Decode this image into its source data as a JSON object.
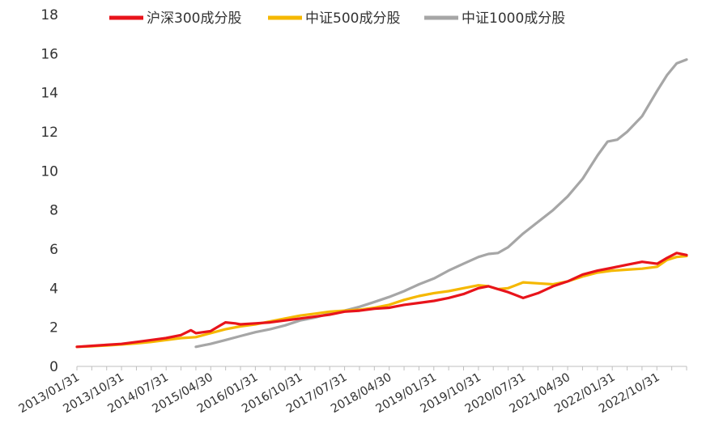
{
  "chart_data": {
    "type": "line",
    "title": "",
    "xlabel": "",
    "ylabel": "",
    "ylim": [
      0,
      18
    ],
    "yticks": [
      "0",
      "2",
      "4",
      "6",
      "8",
      "10",
      "12",
      "14",
      "16",
      "18"
    ],
    "xticks": [
      "2013/01/31",
      "2013/10/31",
      "2014/07/31",
      "2015/04/30",
      "2016/01/31",
      "2016/10/31",
      "2017/07/31",
      "2018/04/30",
      "2019/01/31",
      "2019/10/31",
      "2020/07/31",
      "2021/04/30",
      "2022/01/31",
      "2022/10/31"
    ],
    "grid": false,
    "legend_position": "top",
    "series": [
      {
        "name": "沪深300成分股",
        "color": "#e8141b",
        "x": [
          "2013/01/31",
          "2013/04/30",
          "2013/07/31",
          "2013/10/31",
          "2014/01/31",
          "2014/04/30",
          "2014/07/31",
          "2014/10/31",
          "2014/12/31",
          "2015/01/31",
          "2015/04/30",
          "2015/06/30",
          "2015/07/31",
          "2015/09/30",
          "2015/10/31",
          "2016/01/31",
          "2016/04/30",
          "2016/07/31",
          "2016/10/31",
          "2017/01/31",
          "2017/04/30",
          "2017/07/31",
          "2017/10/31",
          "2018/01/31",
          "2018/04/30",
          "2018/07/31",
          "2018/10/31",
          "2019/01/31",
          "2019/04/30",
          "2019/07/31",
          "2019/10/31",
          "2019/12/31",
          "2020/02/28",
          "2020/04/30",
          "2020/07/31",
          "2020/10/31",
          "2021/01/31",
          "2021/04/30",
          "2021/07/31",
          "2021/10/31",
          "2022/01/31",
          "2022/04/30",
          "2022/07/31",
          "2022/10/31",
          "2022/12/31",
          "2023/02/28",
          "2023/04/30"
        ],
        "y": [
          1.0,
          1.05,
          1.1,
          1.15,
          1.25,
          1.35,
          1.45,
          1.6,
          1.85,
          1.7,
          1.8,
          2.1,
          2.25,
          2.2,
          2.15,
          2.2,
          2.25,
          2.35,
          2.45,
          2.55,
          2.65,
          2.8,
          2.85,
          2.95,
          3.0,
          3.15,
          3.25,
          3.35,
          3.5,
          3.7,
          4.0,
          4.1,
          3.95,
          3.8,
          3.5,
          3.75,
          4.1,
          4.35,
          4.7,
          4.9,
          5.05,
          5.2,
          5.35,
          5.25,
          5.55,
          5.8,
          5.7
        ]
      },
      {
        "name": "中证500成分股",
        "color": "#f5b800",
        "x": [
          "2013/01/31",
          "2013/04/30",
          "2013/07/31",
          "2013/10/31",
          "2014/01/31",
          "2014/04/30",
          "2014/07/31",
          "2014/10/31",
          "2015/01/31",
          "2015/04/30",
          "2015/07/31",
          "2015/10/31",
          "2016/01/31",
          "2016/04/30",
          "2016/07/31",
          "2016/10/31",
          "2017/01/31",
          "2017/04/30",
          "2017/07/31",
          "2017/10/31",
          "2018/01/31",
          "2018/04/30",
          "2018/07/31",
          "2018/10/31",
          "2019/01/31",
          "2019/04/30",
          "2019/07/31",
          "2019/10/31",
          "2019/12/31",
          "2020/02/28",
          "2020/04/30",
          "2020/07/31",
          "2020/10/31",
          "2021/01/31",
          "2021/04/30",
          "2021/07/31",
          "2021/10/31",
          "2022/01/31",
          "2022/04/30",
          "2022/07/31",
          "2022/10/31",
          "2022/12/31",
          "2023/02/28",
          "2023/04/30"
        ],
        "y": [
          1.0,
          1.03,
          1.07,
          1.12,
          1.18,
          1.25,
          1.35,
          1.45,
          1.5,
          1.7,
          1.9,
          2.05,
          2.15,
          2.3,
          2.45,
          2.6,
          2.7,
          2.8,
          2.85,
          2.9,
          3.0,
          3.15,
          3.4,
          3.6,
          3.75,
          3.85,
          4.0,
          4.15,
          4.1,
          3.95,
          4.0,
          4.3,
          4.25,
          4.2,
          4.35,
          4.6,
          4.8,
          4.9,
          4.95,
          5.0,
          5.1,
          5.45,
          5.6,
          5.65
        ]
      },
      {
        "name": "中证1000成分股",
        "color": "#a6a6a6",
        "x": [
          "2015/01/31",
          "2015/04/30",
          "2015/07/31",
          "2015/10/31",
          "2016/01/31",
          "2016/04/30",
          "2016/07/31",
          "2016/10/31",
          "2017/01/31",
          "2017/04/30",
          "2017/07/31",
          "2017/10/31",
          "2018/01/31",
          "2018/04/30",
          "2018/07/31",
          "2018/10/31",
          "2019/01/31",
          "2019/04/30",
          "2019/07/31",
          "2019/10/31",
          "2019/12/31",
          "2020/02/28",
          "2020/04/30",
          "2020/07/31",
          "2020/10/31",
          "2021/01/31",
          "2021/04/30",
          "2021/07/31",
          "2021/10/31",
          "2021/12/31",
          "2022/02/28",
          "2022/04/30",
          "2022/07/31",
          "2022/10/31",
          "2022/12/31",
          "2023/02/28",
          "2023/04/30"
        ],
        "y": [
          1.0,
          1.15,
          1.35,
          1.55,
          1.75,
          1.9,
          2.1,
          2.35,
          2.5,
          2.7,
          2.85,
          3.05,
          3.3,
          3.55,
          3.85,
          4.2,
          4.5,
          4.9,
          5.25,
          5.6,
          5.75,
          5.8,
          6.1,
          6.8,
          7.4,
          8.0,
          8.7,
          9.6,
          10.8,
          11.5,
          11.6,
          12.0,
          12.8,
          14.1,
          14.9,
          15.5,
          15.7
        ]
      }
    ]
  }
}
